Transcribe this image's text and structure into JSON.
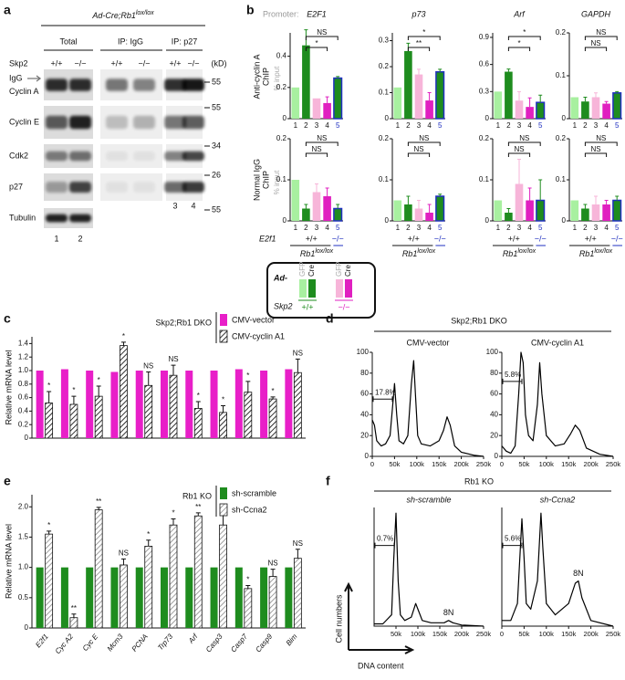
{
  "panel_labels": [
    "a",
    "b",
    "c",
    "d",
    "e",
    "f"
  ],
  "blot": {
    "title": {
      "text": "Ad-Cre;Rb1",
      "sup": "lox/lox"
    },
    "groups": [
      "Total",
      "IP: IgG",
      "IP: p27"
    ],
    "genotype_label": "Skp2",
    "genotypes": [
      "+/+",
      "−/−",
      "+/+",
      "−/−",
      "+/+",
      "−/−"
    ],
    "kd_unit": "(kD)",
    "igg": "IgG",
    "rows": [
      {
        "label": "Cyclin A",
        "kd": "55"
      },
      {
        "label": "Cyclin E",
        "kd": "55"
      },
      {
        "label": "Cdk2",
        "kd": "34"
      },
      {
        "label": "p27",
        "kd": "26"
      },
      {
        "label": "Tubulin",
        "kd": "55"
      }
    ],
    "lanes": [
      "1",
      "2",
      "3",
      "4"
    ]
  },
  "chip": {
    "promoter": "Promoter:",
    "row_labels": [
      [
        "Anti-cyclin A",
        "ChIP"
      ],
      [
        "Normal IgG",
        "ChIP"
      ]
    ],
    "unit": "% input",
    "genotype": {
      "label": "E2f1",
      "wt": "+/+",
      "ko": "−/−",
      "rb1": {
        "text": "Rb1",
        "sup": "lox/lox"
      }
    },
    "legend": {
      "ad": "Ad-",
      "labels": [
        "GFP",
        "Cre",
        "GFP",
        "Cre"
      ],
      "skp2": "Skp2",
      "genotypes": [
        "+/+",
        "−/−"
      ]
    }
  },
  "headers": {
    "d": "Skp2;Rb1 DKO",
    "f": "Rb1 KO"
  },
  "axis_f": {
    "y": "Cell numbers",
    "x": "DNA content"
  },
  "chart_data": [
    {
      "type": "bar",
      "title": "E2F1",
      "categories": [
        "1",
        "2",
        "3",
        "4",
        "5"
      ],
      "values": [
        0.2,
        0.47,
        0.13,
        0.1,
        0.26
      ],
      "errors": [
        null,
        0.1,
        null,
        0.04,
        0.01
      ],
      "colors": [
        "#a8f0a0",
        "#1e8c1e",
        "#f7b5d9",
        "#e020c0",
        "#1e8c1e"
      ],
      "edgecolors": [
        null,
        null,
        null,
        null,
        "#2030c0"
      ],
      "ylim": [
        0,
        0.55
      ],
      "yticks": [
        0,
        0.2,
        0.4
      ],
      "annotations": [
        "NS",
        "*"
      ]
    },
    {
      "type": "bar",
      "title": "p73",
      "categories": [
        "1",
        "2",
        "3",
        "4",
        "5"
      ],
      "values": [
        0.12,
        0.26,
        0.17,
        0.07,
        0.18
      ],
      "errors": [
        null,
        0.03,
        0.02,
        0.03,
        0.01
      ],
      "colors": [
        "#a8f0a0",
        "#1e8c1e",
        "#f7b5d9",
        "#e020c0",
        "#1e8c1e"
      ],
      "edgecolors": [
        null,
        null,
        null,
        null,
        "#2030c0"
      ],
      "ylim": [
        0,
        0.33
      ],
      "yticks": [
        0,
        0.1,
        0.2,
        0.3
      ],
      "annotations": [
        "*",
        "**"
      ]
    },
    {
      "type": "bar",
      "title": "Arf",
      "categories": [
        "1",
        "2",
        "3",
        "4",
        "5"
      ],
      "values": [
        0.3,
        0.52,
        0.2,
        0.13,
        0.18
      ],
      "errors": [
        null,
        0.03,
        0.1,
        0.1,
        0.08
      ],
      "colors": [
        "#a8f0a0",
        "#1e8c1e",
        "#f7b5d9",
        "#e020c0",
        "#1e8c1e"
      ],
      "edgecolors": [
        null,
        null,
        null,
        null,
        "#2030c0"
      ],
      "ylim": [
        0,
        0.95
      ],
      "yticks": [
        0,
        0.3,
        0.6,
        0.9
      ],
      "annotations": [
        "*",
        "*"
      ]
    },
    {
      "type": "bar",
      "title": "GAPDH",
      "categories": [
        "1",
        "2",
        "3",
        "4",
        "5"
      ],
      "values": [
        0.05,
        0.04,
        0.05,
        0.035,
        0.06
      ],
      "errors": [
        null,
        0.01,
        0.01,
        0.005,
        0.003
      ],
      "colors": [
        "#a8f0a0",
        "#1e8c1e",
        "#f7b5d9",
        "#e020c0",
        "#1e8c1e"
      ],
      "edgecolors": [
        null,
        null,
        null,
        null,
        "#2030c0"
      ],
      "ylim": [
        0,
        0.2
      ],
      "yticks": [
        0,
        0.1,
        0.2
      ],
      "annotations": [
        "NS",
        "NS"
      ]
    },
    {
      "type": "bar",
      "categories": [
        "1",
        "2",
        "3",
        "4",
        "5"
      ],
      "values": [
        0.1,
        0.03,
        0.07,
        0.06,
        0.03
      ],
      "errors": [
        null,
        0.01,
        0.02,
        0.02,
        0.01
      ],
      "colors": [
        "#a8f0a0",
        "#1e8c1e",
        "#f7b5d9",
        "#e020c0",
        "#1e8c1e"
      ],
      "edgecolors": [
        null,
        null,
        null,
        null,
        "#2030c0"
      ],
      "ylim": [
        0,
        0.2
      ],
      "yticks": [
        0,
        0.1,
        0.2
      ],
      "annotations": [
        "NS",
        "NS"
      ]
    },
    {
      "type": "bar",
      "categories": [
        "1",
        "2",
        "3",
        "4",
        "5"
      ],
      "values": [
        0.05,
        0.04,
        0.03,
        0.02,
        0.06
      ],
      "errors": [
        null,
        0.02,
        0.02,
        0.02,
        0.005
      ],
      "colors": [
        "#a8f0a0",
        "#1e8c1e",
        "#f7b5d9",
        "#e020c0",
        "#1e8c1e"
      ],
      "edgecolors": [
        null,
        null,
        null,
        null,
        "#2030c0"
      ],
      "ylim": [
        0,
        0.2
      ],
      "yticks": [
        0,
        0.1,
        0.2
      ],
      "annotations": [
        "NS",
        "NS"
      ]
    },
    {
      "type": "bar",
      "categories": [
        "1",
        "2",
        "3",
        "4",
        "5"
      ],
      "values": [
        0.05,
        0.02,
        0.09,
        0.05,
        0.05
      ],
      "errors": [
        null,
        0.01,
        0.06,
        0.03,
        0.05
      ],
      "colors": [
        "#a8f0a0",
        "#1e8c1e",
        "#f7b5d9",
        "#e020c0",
        "#1e8c1e"
      ],
      "edgecolors": [
        null,
        null,
        null,
        null,
        "#2030c0"
      ],
      "ylim": [
        0,
        0.2
      ],
      "yticks": [
        0,
        0.1,
        0.2
      ],
      "annotations": [
        "NS",
        "NS"
      ]
    },
    {
      "type": "bar",
      "categories": [
        "1",
        "2",
        "3",
        "4",
        "5"
      ],
      "values": [
        0.05,
        0.03,
        0.04,
        0.04,
        0.05
      ],
      "errors": [
        null,
        0.01,
        0.02,
        0.01,
        0.01
      ],
      "colors": [
        "#a8f0a0",
        "#1e8c1e",
        "#f7b5d9",
        "#e020c0",
        "#1e8c1e"
      ],
      "edgecolors": [
        null,
        null,
        null,
        null,
        "#2030c0"
      ],
      "ylim": [
        0,
        0.2
      ],
      "yticks": [
        0,
        0.1,
        0.2
      ],
      "annotations": [
        "NS",
        "NS"
      ]
    },
    {
      "type": "grouped",
      "ylabel": "Relative mRNA level",
      "legend_title": "Skp2;Rb1 DKO",
      "categories": [
        null,
        null,
        null,
        null,
        null,
        null,
        null,
        null,
        null,
        null,
        null
      ],
      "series": [
        {
          "name": "CMV-vector",
          "color": "#e81fc8",
          "values": [
            1.0,
            1.02,
            1.0,
            0.98,
            1.0,
            1.0,
            1.0,
            1.0,
            1.02,
            1.0,
            1.02
          ]
        },
        {
          "name": "CMV-cyclin A1",
          "color": "#000000",
          "pattern": "hatch",
          "values": [
            0.52,
            0.5,
            0.62,
            1.37,
            0.78,
            0.93,
            0.44,
            0.38,
            0.68,
            0.58,
            0.97
          ],
          "errors": [
            0.17,
            0.12,
            0.15,
            0.05,
            0.2,
            0.15,
            0.1,
            0.1,
            0.16,
            0.03,
            0.2
          ]
        }
      ],
      "annotations": [
        "*",
        "*",
        "*",
        "*",
        "NS",
        "NS",
        "*",
        "*",
        "*",
        "*",
        "NS"
      ],
      "ylim": [
        0,
        1.5
      ],
      "yticks": [
        0,
        0.2,
        0.4,
        0.6,
        0.8,
        {
          "value": 1,
          "label": "1.0"
        },
        1.2,
        1.4
      ]
    },
    {
      "type": "grouped",
      "ylabel": "Relative mRNA level",
      "legend_title": "Rb1 KO",
      "categories": [
        "E2f1",
        "Cyc A2",
        "Cyc E",
        "Mcm3",
        "PCNA",
        "Trp73",
        "Arf",
        "Casp3",
        "Casp7",
        "Casp9",
        "Bim"
      ],
      "series": [
        {
          "name": "sh-scramble",
          "color": "#1e8c1e",
          "values": [
            1.0,
            1.0,
            1.0,
            1.0,
            1.0,
            1.0,
            1.0,
            1.0,
            1.0,
            1.0,
            1.0
          ]
        },
        {
          "name": "sh-Ccna2",
          "color": "#888888",
          "pattern": "hatch",
          "values": [
            1.55,
            0.17,
            1.95,
            1.04,
            1.35,
            1.7,
            1.85,
            1.7,
            0.65,
            0.85,
            1.15
          ],
          "errors": [
            0.05,
            0.06,
            0.04,
            0.1,
            0.1,
            0.1,
            0.05,
            0.2,
            0.05,
            0.12,
            0.15
          ]
        }
      ],
      "annotations": [
        "*",
        "**",
        "**",
        "NS",
        "*",
        "*",
        "**",
        "*",
        "*",
        "NS",
        "NS"
      ],
      "ylim": [
        0,
        2.2
      ],
      "yticks": [
        0,
        0.5,
        {
          "value": 1,
          "label": "1.0"
        },
        1.5,
        {
          "value": 2,
          "label": "2.0"
        }
      ]
    },
    {
      "type": "line",
      "title": "CMV-vector",
      "gate_label": "17.8%",
      "color": "#000000",
      "x": [
        0,
        5000,
        10000,
        20000,
        30000,
        40000,
        45000,
        50000,
        55000,
        60000,
        70000,
        80000,
        88000,
        93000,
        97000,
        102000,
        110000,
        130000,
        150000,
        160000,
        168000,
        175000,
        185000,
        200000,
        230000,
        250000
      ],
      "values": [
        35,
        30,
        15,
        10,
        12,
        20,
        45,
        70,
        40,
        15,
        12,
        20,
        70,
        92,
        60,
        20,
        12,
        10,
        15,
        25,
        38,
        30,
        10,
        4,
        1,
        0
      ],
      "xlim": [
        0,
        250000
      ],
      "xticks": [
        0,
        {
          "value": 50000,
          "label": "50k"
        },
        {
          "value": 100000,
          "label": "100k"
        },
        {
          "value": 150000,
          "label": "150k"
        },
        {
          "value": 200000,
          "label": "200k"
        },
        {
          "value": 250000,
          "label": "250k"
        }
      ],
      "ylim": [
        0,
        100
      ],
      "yticks": [
        0,
        20,
        40,
        60,
        80,
        100
      ]
    },
    {
      "type": "line",
      "title": "CMV-cyclin A1",
      "gate_label": "5.8%",
      "color": "#000000",
      "x": [
        0,
        10000,
        20000,
        30000,
        38000,
        43000,
        48000,
        53000,
        60000,
        70000,
        80000,
        85000,
        90000,
        100000,
        120000,
        140000,
        155000,
        165000,
        175000,
        190000,
        220000,
        250000
      ],
      "values": [
        10,
        5,
        3,
        10,
        60,
        100,
        90,
        40,
        20,
        15,
        50,
        90,
        60,
        20,
        10,
        12,
        22,
        30,
        25,
        8,
        2,
        0
      ],
      "xlim": [
        0,
        250000
      ],
      "xticks": [
        0,
        {
          "value": 50000,
          "label": "50k"
        },
        {
          "value": 100000,
          "label": "100k"
        },
        {
          "value": 150000,
          "label": "150k"
        },
        {
          "value": 200000,
          "label": "200k"
        },
        {
          "value": 250000,
          "label": "250k"
        }
      ],
      "ylim": [
        0,
        100
      ],
      "yticks": [
        0,
        20,
        40,
        60,
        80,
        100
      ]
    },
    {
      "type": "line",
      "title": "sh-scramble",
      "gate_label": "0.7%",
      "peak_label": "8N",
      "color": "#000000",
      "x": [
        0,
        20000,
        40000,
        45000,
        50000,
        55000,
        60000,
        70000,
        85000,
        95000,
        100000,
        110000,
        130000,
        160000,
        170000,
        180000,
        200000,
        250000
      ],
      "values": [
        2,
        2,
        10,
        60,
        100,
        40,
        10,
        5,
        8,
        20,
        15,
        5,
        3,
        3,
        5,
        3,
        1,
        0
      ],
      "xlim": [
        0,
        250000
      ],
      "xticks": [
        {
          "value": 50000,
          "label": "50k"
        },
        {
          "value": 100000,
          "label": "100k"
        },
        {
          "value": 150000,
          "label": "150k"
        },
        {
          "value": 200000,
          "label": "200k"
        },
        {
          "value": 250000,
          "label": "250k"
        }
      ],
      "ylim": [
        0,
        105
      ]
    },
    {
      "type": "line",
      "title": "sh-Ccna2",
      "gate_label": "5.6%",
      "peak_label": "8N",
      "color": "#000000",
      "x": [
        0,
        20000,
        35000,
        45000,
        50000,
        55000,
        65000,
        80000,
        88000,
        92000,
        100000,
        120000,
        150000,
        165000,
        172000,
        180000,
        200000,
        250000
      ],
      "values": [
        5,
        5,
        20,
        95,
        60,
        20,
        15,
        40,
        100,
        70,
        20,
        10,
        20,
        38,
        40,
        25,
        5,
        0
      ],
      "xlim": [
        0,
        250000
      ],
      "xticks": [
        0,
        {
          "value": 50000,
          "label": "50k"
        },
        {
          "value": 100000,
          "label": "100k"
        },
        {
          "value": 150000,
          "label": "150k"
        },
        {
          "value": 200000,
          "label": "200k"
        },
        {
          "value": 250000,
          "label": "250k"
        }
      ],
      "ylim": [
        0,
        105
      ]
    }
  ]
}
